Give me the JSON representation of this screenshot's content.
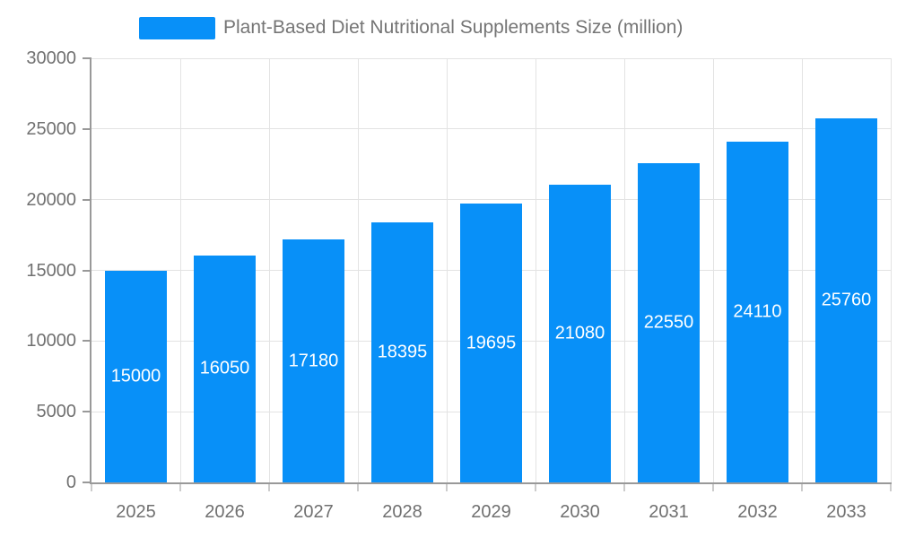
{
  "chart_data": {
    "type": "bar",
    "title": "Plant-Based Diet Nutritional Supplements Size (million)",
    "categories": [
      "2025",
      "2026",
      "2027",
      "2028",
      "2029",
      "2030",
      "2031",
      "2032",
      "2033"
    ],
    "values": [
      15000,
      16050,
      17180,
      18395,
      19695,
      21080,
      22550,
      24110,
      25760
    ],
    "xlabel": "",
    "ylabel": "",
    "ylim": [
      0,
      30000
    ],
    "yticks": [
      0,
      5000,
      10000,
      15000,
      20000,
      25000,
      30000
    ],
    "grid": true,
    "legend_position": "top",
    "bar_color": "#0890f8",
    "bar_label_color": "#ffffff",
    "axis_text_color": "#707070",
    "legend_text_color": "#757575",
    "axis_line_color": "#999999",
    "tick_color": "#cccccc",
    "grid_color": "#e3e3e3",
    "background_color": "#ffffff"
  }
}
